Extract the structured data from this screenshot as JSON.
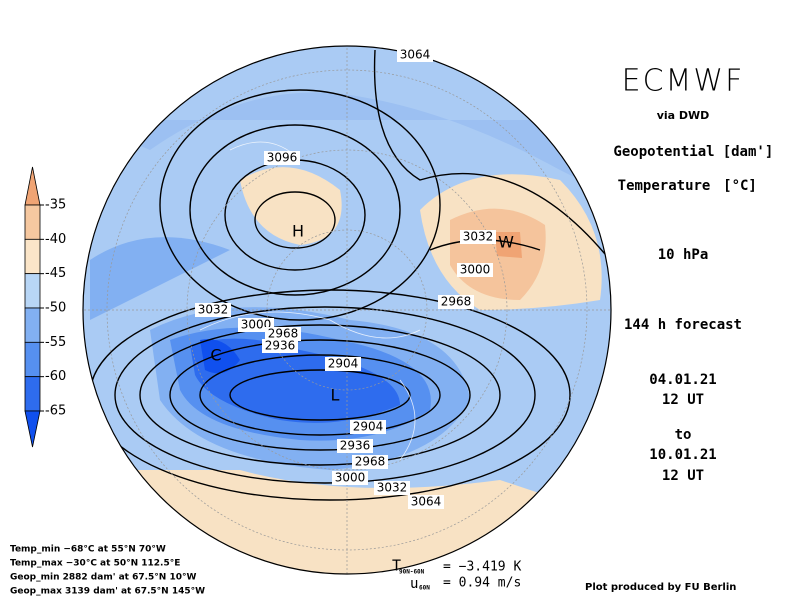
{
  "header": {
    "title": "ECMWF",
    "source": "via DWD",
    "variable1": "Geopotential",
    "unit1": "[dam']",
    "variable2": "Temperature",
    "unit2": "[°C]",
    "level": "10 hPa",
    "forecast": "144 h forecast",
    "start_date": "04.01.21",
    "start_time": "12 UT",
    "to": "to",
    "end_date": "10.01.21",
    "end_time": "12 UT"
  },
  "colorbar": {
    "ticks": [
      -35,
      -40,
      -45,
      -50,
      -55,
      -60,
      -65
    ],
    "colors": [
      "#f0a474",
      "#f6c8a0",
      "#fbe5c8",
      "#b8d6f6",
      "#82b0f2",
      "#5690f0",
      "#2e6cee",
      "#1050ee"
    ]
  },
  "map": {
    "contour_labels": [
      "3064",
      "3096",
      "3032",
      "3000",
      "2968",
      "3032",
      "3000",
      "2968",
      "2936",
      "2904",
      "2904",
      "2936",
      "2968",
      "3000",
      "3032",
      "3064"
    ],
    "markers": [
      "H",
      "W",
      "L",
      "C"
    ]
  },
  "stats": [
    "Temp_min −68°C at 55°N 70°W",
    "Temp_max −30°C at 50°N 112.5°E",
    "Geop_min 2882 dam' at 67.5°N 10°W",
    "Geop_max 3139 dam' at 67.5°N 145°W"
  ],
  "indices": {
    "t_label": "T",
    "t_sub": "90N-60N",
    "t_value": "= −3.419 K",
    "u_label": "u",
    "u_sub": "60N",
    "u_value": "= 0.94 m/s"
  },
  "credit": "Plot produced by FU Berlin"
}
